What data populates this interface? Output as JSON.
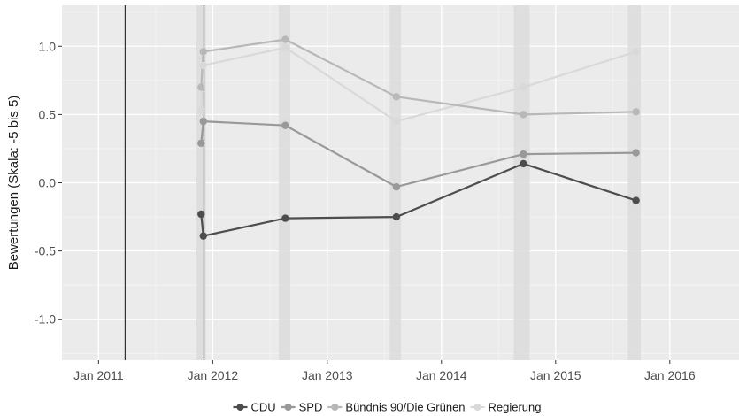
{
  "chart_data": {
    "type": "line",
    "title": "",
    "xlabel": "",
    "ylabel": "Bewertungen (Skala: -5 bis 5)",
    "x_ticks": [
      "Jan 2011",
      "Jan 2012",
      "Jan 2013",
      "Jan 2014",
      "Jan 2015",
      "Jan 2016"
    ],
    "y_ticks": [
      "1.0",
      "0.5",
      "0.0",
      "-0.5",
      "-1.0"
    ],
    "ylim": [
      -1.3,
      1.3
    ],
    "xlim": [
      "2010-09-06",
      "2016-08-12"
    ],
    "grid": true,
    "legend_position": "bottom",
    "vertical_lines": [
      "2011-03-27",
      "2011-12-04"
    ],
    "shaded_bands": [
      {
        "start": "2011-11-10",
        "end": "2011-12-10"
      },
      {
        "start": "2012-07-30",
        "end": "2012-09-05"
      },
      {
        "start": "2013-07-20",
        "end": "2013-08-25"
      },
      {
        "start": "2014-08-20",
        "end": "2014-10-10"
      },
      {
        "start": "2015-08-20",
        "end": "2015-09-30"
      }
    ],
    "series": [
      {
        "name": "CDU",
        "color": "#4d4d4d",
        "x": [
          "2011-11-25",
          "2011-12-02",
          "2012-08-20",
          "2013-08-10",
          "2014-09-20",
          "2015-09-15"
        ],
        "values": [
          -0.23,
          -0.39,
          -0.26,
          -0.25,
          0.14,
          -0.13
        ]
      },
      {
        "name": "SPD",
        "color": "#999999",
        "x": [
          "2011-11-25",
          "2011-12-02",
          "2012-08-20",
          "2013-08-10",
          "2014-09-20",
          "2015-09-15"
        ],
        "values": [
          0.29,
          0.45,
          0.42,
          -0.03,
          0.21,
          0.22
        ]
      },
      {
        "name": "Bündnis 90/Die Grünen",
        "color": "#b8b8b8",
        "x": [
          "2011-11-25",
          "2011-12-02",
          "2012-08-20",
          "2013-08-10",
          "2014-09-20",
          "2015-09-15"
        ],
        "values": [
          0.7,
          0.96,
          1.05,
          0.63,
          0.5,
          0.52
        ]
      },
      {
        "name": "Regierung",
        "color": "#d9d9d9",
        "x": [
          "2011-11-25",
          "2011-12-02",
          "2012-08-20",
          "2013-08-10",
          "2014-09-20",
          "2015-09-15"
        ],
        "values": [
          0.53,
          0.86,
          0.99,
          0.45,
          0.7,
          0.96
        ]
      }
    ]
  },
  "colors": {
    "panel": "#ebebeb",
    "grid_major": "#ffffff",
    "grid_minor": "#f5f5f5",
    "band": "#dcdcdc",
    "vline": "#333333"
  }
}
